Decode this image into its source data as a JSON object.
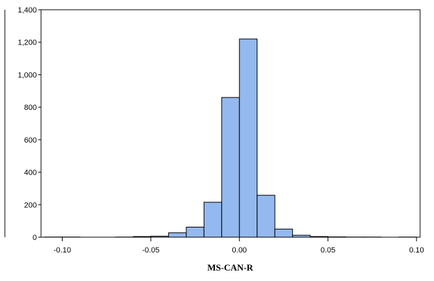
{
  "chart_data": {
    "type": "bar",
    "xlabel": "MS-CAN-R",
    "ylabel": "",
    "xlim": [
      -0.112,
      0.102
    ],
    "ylim": [
      0,
      1400
    ],
    "bin_width": 0.01,
    "bins": [
      {
        "x0": -0.11,
        "x1": -0.1,
        "count": 1
      },
      {
        "x0": -0.1,
        "x1": -0.09,
        "count": 1
      },
      {
        "x0": -0.09,
        "x1": -0.08,
        "count": 0
      },
      {
        "x0": -0.08,
        "x1": -0.07,
        "count": 0
      },
      {
        "x0": -0.07,
        "x1": -0.06,
        "count": 1
      },
      {
        "x0": -0.06,
        "x1": -0.05,
        "count": 4
      },
      {
        "x0": -0.05,
        "x1": -0.04,
        "count": 6
      },
      {
        "x0": -0.04,
        "x1": -0.03,
        "count": 27
      },
      {
        "x0": -0.03,
        "x1": -0.02,
        "count": 62
      },
      {
        "x0": -0.02,
        "x1": -0.01,
        "count": 215
      },
      {
        "x0": -0.01,
        "x1": 0.0,
        "count": 860
      },
      {
        "x0": 0.0,
        "x1": 0.01,
        "count": 1220
      },
      {
        "x0": 0.01,
        "x1": 0.02,
        "count": 258
      },
      {
        "x0": 0.02,
        "x1": 0.03,
        "count": 50
      },
      {
        "x0": 0.03,
        "x1": 0.04,
        "count": 12
      },
      {
        "x0": 0.04,
        "x1": 0.05,
        "count": 4
      },
      {
        "x0": 0.05,
        "x1": 0.06,
        "count": 2
      },
      {
        "x0": 0.06,
        "x1": 0.07,
        "count": 1
      },
      {
        "x0": 0.07,
        "x1": 0.08,
        "count": 1
      },
      {
        "x0": 0.08,
        "x1": 0.09,
        "count": 0
      },
      {
        "x0": 0.09,
        "x1": 0.1,
        "count": 1
      }
    ],
    "x_ticks": [
      {
        "value": -0.1,
        "label": "-0.10"
      },
      {
        "value": -0.05,
        "label": "-0.05"
      },
      {
        "value": 0.0,
        "label": "0.00"
      },
      {
        "value": 0.05,
        "label": "0.05"
      },
      {
        "value": 0.1,
        "label": "0.10"
      }
    ],
    "y_ticks": [
      {
        "value": 0,
        "label": "0"
      },
      {
        "value": 200,
        "label": "200"
      },
      {
        "value": 400,
        "label": "400"
      },
      {
        "value": 600,
        "label": "600"
      },
      {
        "value": 800,
        "label": "800"
      },
      {
        "value": 1000,
        "label": "1,000"
      },
      {
        "value": 1200,
        "label": "1,200"
      },
      {
        "value": 1400,
        "label": "1,400"
      }
    ],
    "grid": false,
    "legend": "none",
    "colors": {
      "bar_fill": "#94b9ef",
      "bar_stroke": "#000000",
      "axis": "#000000"
    }
  }
}
